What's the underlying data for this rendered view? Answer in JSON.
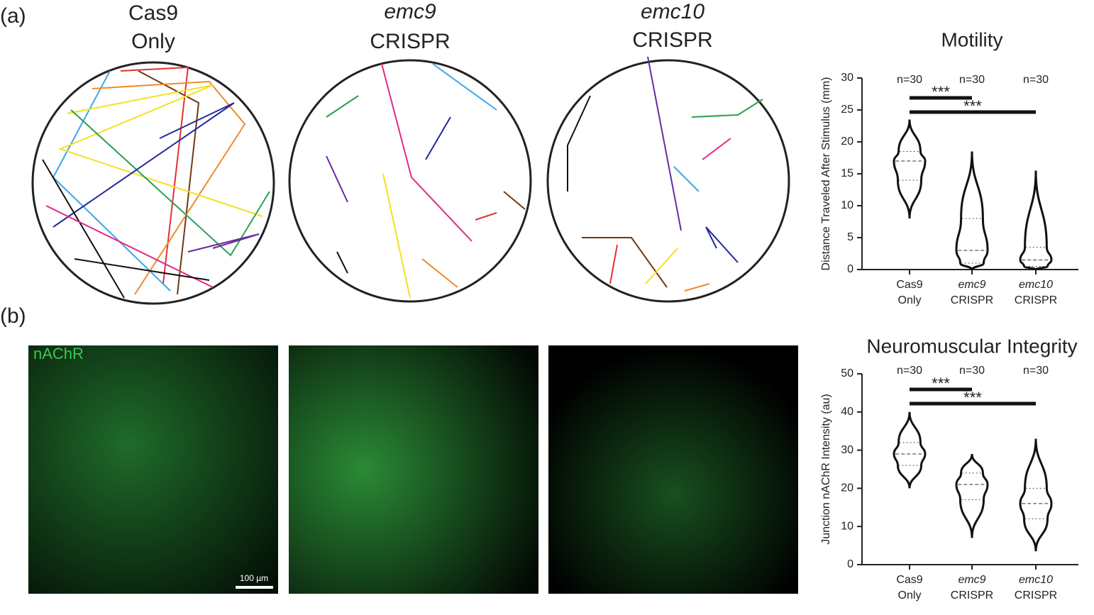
{
  "panel_labels": [
    "(a)",
    "(b)"
  ],
  "trajectory_headers": [
    [
      "Cas9",
      "Only"
    ],
    [
      "emc9",
      "CRISPR"
    ],
    [
      "emc10",
      "CRISPR"
    ]
  ],
  "image_label": "nAChR",
  "scale_bar": "100 µm",
  "chart_data": [
    {
      "type": "violin",
      "title": "Motility",
      "y_label": "Distance Traveled After Stimulus (mm)",
      "categories": [
        [
          "Cas9",
          "Only"
        ],
        [
          "emc9",
          "CRISPR"
        ],
        [
          "emc10",
          "CRISPR"
        ]
      ],
      "min": [
        8,
        0,
        0
      ],
      "q1": [
        14,
        1,
        0.5
      ],
      "median": [
        17,
        3,
        1.5
      ],
      "q3": [
        18.5,
        8,
        3.5
      ],
      "max": [
        23.5,
        18.5,
        15.5
      ],
      "n_labels": [
        "n=30",
        "n=30",
        "n=30"
      ],
      "significance": [
        "***",
        "***"
      ],
      "ylim": [
        0,
        30
      ],
      "yticks": [
        0,
        5,
        10,
        15,
        20,
        25,
        30
      ]
    },
    {
      "type": "violin",
      "title": "Neuromuscular Integrity",
      "y_label": "Junction nAChR Intensity (au)",
      "categories": [
        [
          "Cas9",
          "Only"
        ],
        [
          "emc9",
          "CRISPR"
        ],
        [
          "emc10",
          "CRISPR"
        ]
      ],
      "min": [
        20,
        7,
        3.5
      ],
      "q1": [
        26,
        17,
        12
      ],
      "median": [
        29,
        21,
        16
      ],
      "q3": [
        32,
        24,
        20
      ],
      "max": [
        40,
        29,
        33
      ],
      "n_labels": [
        "n=30",
        "n=30",
        "n=30"
      ],
      "significance": [
        "***",
        "***"
      ],
      "ylim": [
        0,
        50
      ],
      "yticks": [
        0,
        10,
        20,
        30,
        40,
        50
      ]
    }
  ]
}
